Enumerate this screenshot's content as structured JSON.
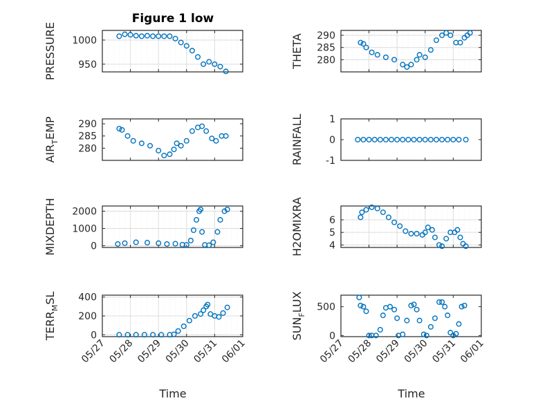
{
  "figure_title": "Figure 1 low",
  "x_axis_label": "Time",
  "x_tick_labels": [
    "05/27",
    "05/28",
    "05/29",
    "05/30",
    "05/31",
    "06/01"
  ],
  "colors": {
    "marker": "#0072BD",
    "axes": "#262626",
    "grid": "#dcdcdc"
  },
  "chart_data": [
    {
      "type": "scatter",
      "ylabel": "PRESSURE",
      "ylim": [
        934,
        1020
      ],
      "yticks": [
        950,
        1000
      ],
      "yticklabels": [
        "950",
        "1000"
      ],
      "xlim": [
        0,
        5
      ],
      "grid": true,
      "marker": "open-circle",
      "points": [
        [
          0.6,
          1008
        ],
        [
          0.8,
          1012
        ],
        [
          1.0,
          1011
        ],
        [
          1.2,
          1009
        ],
        [
          1.4,
          1008
        ],
        [
          1.6,
          1009
        ],
        [
          1.8,
          1008
        ],
        [
          2.0,
          1008
        ],
        [
          2.2,
          1008
        ],
        [
          2.4,
          1008
        ],
        [
          2.6,
          1003
        ],
        [
          2.8,
          995
        ],
        [
          3.0,
          988
        ],
        [
          3.2,
          978
        ],
        [
          3.4,
          965
        ],
        [
          3.6,
          950
        ],
        [
          3.8,
          955
        ],
        [
          4.0,
          950
        ],
        [
          4.2,
          945
        ],
        [
          4.4,
          935
        ]
      ]
    },
    {
      "type": "scatter",
      "ylabel": "THETA",
      "ylim": [
        275,
        292
      ],
      "yticks": [
        280,
        285,
        290
      ],
      "yticklabels": [
        "280",
        "285",
        "290"
      ],
      "xlim": [
        0,
        5
      ],
      "grid": true,
      "marker": "open-circle",
      "points": [
        [
          0.7,
          287
        ],
        [
          0.8,
          286.5
        ],
        [
          0.9,
          285
        ],
        [
          1.1,
          283
        ],
        [
          1.3,
          282
        ],
        [
          1.6,
          281
        ],
        [
          1.9,
          280
        ],
        [
          2.2,
          278
        ],
        [
          2.35,
          277
        ],
        [
          2.5,
          278
        ],
        [
          2.7,
          280
        ],
        [
          2.8,
          282
        ],
        [
          3.0,
          281
        ],
        [
          3.2,
          284
        ],
        [
          3.4,
          288
        ],
        [
          3.6,
          290
        ],
        [
          3.75,
          291
        ],
        [
          3.9,
          290
        ],
        [
          4.1,
          287
        ],
        [
          4.25,
          287
        ],
        [
          4.4,
          289
        ],
        [
          4.5,
          290
        ],
        [
          4.6,
          291
        ]
      ]
    },
    {
      "type": "scatter",
      "ylabel": "AIR_TEMP",
      "ylim": [
        275,
        292
      ],
      "yticks": [
        280,
        285,
        290
      ],
      "yticklabels": [
        "280",
        "285",
        "290"
      ],
      "xlim": [
        0,
        5
      ],
      "grid": false,
      "marker": "open-circle",
      "points": [
        [
          0.6,
          288
        ],
        [
          0.7,
          287.5
        ],
        [
          0.9,
          285
        ],
        [
          1.1,
          283
        ],
        [
          1.4,
          282
        ],
        [
          1.7,
          281
        ],
        [
          2.0,
          279
        ],
        [
          2.2,
          277
        ],
        [
          2.4,
          277.5
        ],
        [
          2.55,
          279.5
        ],
        [
          2.65,
          282
        ],
        [
          2.8,
          281
        ],
        [
          3.0,
          283
        ],
        [
          3.2,
          287
        ],
        [
          3.4,
          288.5
        ],
        [
          3.55,
          289
        ],
        [
          3.7,
          287
        ],
        [
          3.9,
          284
        ],
        [
          4.05,
          283
        ],
        [
          4.25,
          285
        ],
        [
          4.4,
          285
        ]
      ]
    },
    {
      "type": "scatter",
      "ylabel": "RAINFALL",
      "ylim": [
        -1,
        1
      ],
      "yticks": [
        -1,
        0,
        1
      ],
      "yticklabels": [
        "-1",
        "0",
        "1"
      ],
      "xlim": [
        0,
        5
      ],
      "grid": false,
      "marker": "open-circle",
      "points": [
        [
          0.6,
          0
        ],
        [
          0.8,
          0
        ],
        [
          1.0,
          0
        ],
        [
          1.2,
          0
        ],
        [
          1.4,
          0
        ],
        [
          1.6,
          0
        ],
        [
          1.8,
          0
        ],
        [
          2.0,
          0
        ],
        [
          2.2,
          0
        ],
        [
          2.4,
          0
        ],
        [
          2.6,
          0
        ],
        [
          2.8,
          0
        ],
        [
          3.0,
          0
        ],
        [
          3.2,
          0
        ],
        [
          3.4,
          0
        ],
        [
          3.6,
          0
        ],
        [
          3.8,
          0
        ],
        [
          4.0,
          0
        ],
        [
          4.2,
          0
        ],
        [
          4.45,
          0
        ]
      ]
    },
    {
      "type": "scatter",
      "ylabel": "MIXDEPTH",
      "ylim": [
        -100,
        2300
      ],
      "yticks": [
        0,
        1000,
        2000
      ],
      "yticklabels": [
        "0",
        "1000",
        "2000"
      ],
      "xlim": [
        0,
        5
      ],
      "grid": true,
      "marker": "open-circle",
      "points": [
        [
          0.55,
          100
        ],
        [
          0.8,
          150
        ],
        [
          1.2,
          200
        ],
        [
          1.6,
          180
        ],
        [
          2.0,
          150
        ],
        [
          2.3,
          100
        ],
        [
          2.6,
          120
        ],
        [
          2.85,
          60
        ],
        [
          3.0,
          50
        ],
        [
          3.15,
          300
        ],
        [
          3.25,
          900
        ],
        [
          3.35,
          1500
        ],
        [
          3.45,
          2000
        ],
        [
          3.5,
          2100
        ],
        [
          3.55,
          800
        ],
        [
          3.65,
          50
        ],
        [
          3.8,
          30
        ],
        [
          3.95,
          200
        ],
        [
          4.1,
          800
        ],
        [
          4.2,
          1500
        ],
        [
          4.35,
          2000
        ],
        [
          4.45,
          2100
        ]
      ]
    },
    {
      "type": "scatter",
      "ylabel": "H2OMIXRA",
      "ylim": [
        3.8,
        7.1
      ],
      "yticks": [
        4,
        5,
        6
      ],
      "yticklabels": [
        "4",
        "5",
        "6"
      ],
      "xlim": [
        0,
        5
      ],
      "grid": true,
      "marker": "open-circle",
      "points": [
        [
          0.7,
          6.2
        ],
        [
          0.75,
          6.6
        ],
        [
          0.9,
          6.8
        ],
        [
          1.1,
          7.0
        ],
        [
          1.3,
          6.9
        ],
        [
          1.5,
          6.6
        ],
        [
          1.7,
          6.2
        ],
        [
          1.9,
          5.8
        ],
        [
          2.1,
          5.5
        ],
        [
          2.3,
          5.1
        ],
        [
          2.5,
          4.9
        ],
        [
          2.7,
          4.9
        ],
        [
          2.9,
          4.8
        ],
        [
          3.0,
          5.0
        ],
        [
          3.1,
          5.4
        ],
        [
          3.25,
          5.2
        ],
        [
          3.35,
          4.6
        ],
        [
          3.5,
          4.0
        ],
        [
          3.6,
          3.9
        ],
        [
          3.75,
          4.5
        ],
        [
          3.9,
          5.0
        ],
        [
          4.05,
          5.0
        ],
        [
          4.15,
          5.2
        ],
        [
          4.25,
          4.6
        ],
        [
          4.35,
          4.1
        ],
        [
          4.45,
          3.9
        ]
      ]
    },
    {
      "type": "scatter",
      "ylabel": "TERR_MSL",
      "ylim": [
        -20,
        420
      ],
      "yticks": [
        0,
        200,
        400
      ],
      "yticklabels": [
        "0",
        "200",
        "400"
      ],
      "xlim": [
        0,
        5
      ],
      "grid": true,
      "marker": "open-circle",
      "points": [
        [
          0.6,
          0
        ],
        [
          0.9,
          0
        ],
        [
          1.2,
          0
        ],
        [
          1.5,
          0
        ],
        [
          1.8,
          0
        ],
        [
          2.1,
          0
        ],
        [
          2.4,
          0
        ],
        [
          2.55,
          5
        ],
        [
          2.7,
          40
        ],
        [
          2.9,
          90
        ],
        [
          3.1,
          150
        ],
        [
          3.3,
          200
        ],
        [
          3.5,
          220
        ],
        [
          3.6,
          260
        ],
        [
          3.7,
          300
        ],
        [
          3.75,
          320
        ],
        [
          3.85,
          220
        ],
        [
          4.0,
          200
        ],
        [
          4.15,
          190
        ],
        [
          4.3,
          230
        ],
        [
          4.45,
          290
        ]
      ]
    },
    {
      "type": "scatter",
      "ylabel": "SUN_FLUX",
      "ylim": [
        -20,
        700
      ],
      "yticks": [
        0,
        500
      ],
      "yticklabels": [
        "0",
        "500"
      ],
      "xlim": [
        0,
        5
      ],
      "grid": false,
      "marker": "open-circle",
      "points": [
        [
          0.65,
          660
        ],
        [
          0.7,
          520
        ],
        [
          0.8,
          500
        ],
        [
          0.9,
          420
        ],
        [
          1.0,
          0
        ],
        [
          1.1,
          0
        ],
        [
          1.25,
          0
        ],
        [
          1.4,
          100
        ],
        [
          1.5,
          350
        ],
        [
          1.6,
          480
        ],
        [
          1.75,
          500
        ],
        [
          1.9,
          450
        ],
        [
          2.0,
          300
        ],
        [
          2.05,
          0
        ],
        [
          2.2,
          20
        ],
        [
          2.35,
          260
        ],
        [
          2.5,
          520
        ],
        [
          2.6,
          540
        ],
        [
          2.7,
          450
        ],
        [
          2.8,
          260
        ],
        [
          2.95,
          20
        ],
        [
          3.05,
          0
        ],
        [
          3.2,
          150
        ],
        [
          3.35,
          300
        ],
        [
          3.5,
          580
        ],
        [
          3.6,
          580
        ],
        [
          3.7,
          500
        ],
        [
          3.8,
          350
        ],
        [
          3.9,
          50
        ],
        [
          4.0,
          0
        ],
        [
          4.1,
          30
        ],
        [
          4.2,
          200
        ],
        [
          4.3,
          500
        ],
        [
          4.4,
          520
        ]
      ]
    }
  ]
}
